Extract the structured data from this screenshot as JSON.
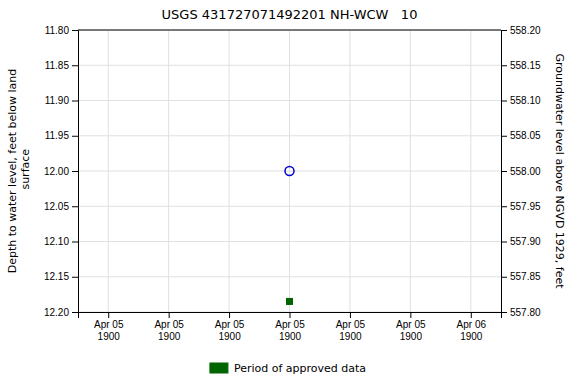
{
  "chart_data": {
    "type": "scatter",
    "title": "USGS 431727071492201 NH-WCW   10",
    "y_label": "Depth to water level, feet below land\n surface",
    "y2_label": "Groundwater level above NGVD 1929, feet",
    "categories": [
      "Apr 05\n1900",
      "Apr 05\n1900",
      "Apr 05\n1900",
      "Apr 05\n1900",
      "Apr 05\n1900",
      "Apr 05\n1900",
      "Apr 06\n1900"
    ],
    "series": [
      {
        "color": "#0000cc",
        "marker": "circle-open",
        "values": [
          null,
          null,
          null,
          12.0,
          null,
          null,
          null
        ]
      },
      {
        "name": "Period of approved data",
        "color": "#006400",
        "marker": "square",
        "values": [
          null,
          null,
          null,
          12.185,
          null,
          null,
          null
        ]
      }
    ],
    "ylim": [
      12.2,
      11.8
    ],
    "yticks": [
      {
        "value": 11.8,
        "label": "11.80"
      },
      11.85,
      {
        "value": 11.9,
        "label": "11.90"
      },
      11.95,
      {
        "value": 12.0,
        "label": "12.00"
      },
      12.05,
      {
        "value": 12.1,
        "label": "12.10"
      },
      12.15,
      {
        "value": 12.2,
        "label": "12.20"
      }
    ],
    "y2lim": [
      557.8,
      558.2
    ],
    "y2ticks": [
      {
        "value": 557.8,
        "label": "557.80"
      },
      557.85,
      {
        "value": 557.9,
        "label": "557.90"
      },
      557.95,
      {
        "value": 558.0,
        "label": "558.00"
      },
      558.05,
      {
        "value": 558.1,
        "label": "558.10"
      },
      558.15,
      {
        "value": 558.2,
        "label": "558.20"
      }
    ],
    "grid": true,
    "legend": "bottom"
  }
}
